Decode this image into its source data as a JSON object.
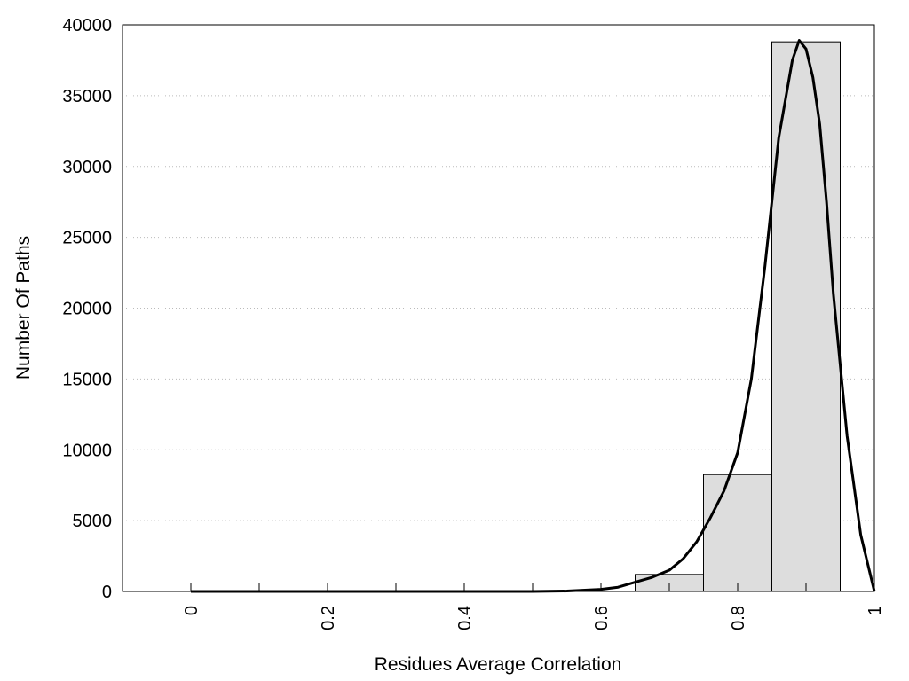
{
  "chart_data": {
    "type": "bar",
    "xlabel": "Residues Average Correlation",
    "ylabel": "Number Of Paths",
    "xlim": [
      -0.1,
      1.0
    ],
    "ylim": [
      0,
      40000
    ],
    "grid": true,
    "x_ticks": [
      0,
      0.2,
      0.4,
      0.6,
      0.8,
      1
    ],
    "x_tick_labels": [
      "0",
      "0.2",
      "0.4",
      "0.6",
      "0.8",
      "1"
    ],
    "x_minor_ticks": [
      0.1,
      0.3,
      0.5,
      0.7,
      0.9
    ],
    "y_ticks": [
      0,
      5000,
      10000,
      15000,
      20000,
      25000,
      30000,
      35000,
      40000
    ],
    "y_tick_labels": [
      "0",
      "5000",
      "10000",
      "15000",
      "20000",
      "25000",
      "30000",
      "35000",
      "40000"
    ],
    "bars": [
      {
        "x_start": 0.65,
        "x_end": 0.75,
        "value": 1200
      },
      {
        "x_start": 0.75,
        "x_end": 0.85,
        "value": 8250
      },
      {
        "x_start": 0.85,
        "x_end": 0.95,
        "value": 38800
      }
    ],
    "curve": {
      "x": [
        0.0,
        0.1,
        0.2,
        0.3,
        0.4,
        0.5,
        0.55,
        0.6,
        0.625,
        0.65,
        0.675,
        0.7,
        0.72,
        0.74,
        0.76,
        0.78,
        0.8,
        0.82,
        0.84,
        0.86,
        0.88,
        0.89,
        0.9,
        0.91,
        0.92,
        0.93,
        0.94,
        0.96,
        0.98,
        1.0
      ],
      "y": [
        0,
        0,
        0,
        0,
        0,
        0,
        30,
        150,
        300,
        650,
        1000,
        1500,
        2300,
        3500,
        5200,
        7100,
        9800,
        15000,
        23000,
        32000,
        37500,
        38900,
        38300,
        36300,
        33000,
        27500,
        21000,
        11000,
        4000,
        0
      ]
    },
    "colors": {
      "bar_fill": "#dddddd",
      "bar_stroke": "#000000",
      "curve": "#000000",
      "grid": "#bbbbbb"
    }
  }
}
